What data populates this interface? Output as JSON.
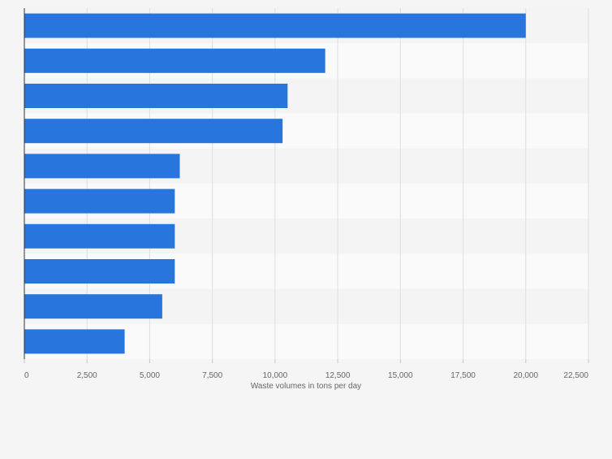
{
  "chart_data": {
    "type": "bar",
    "orientation": "horizontal",
    "categories": [
      "",
      "",
      "",
      "",
      "",
      "",
      "",
      "",
      "",
      ""
    ],
    "values": [
      20000,
      12000,
      10500,
      10300,
      6200,
      6000,
      6000,
      6000,
      5500,
      4000
    ],
    "title": "",
    "xlabel": "Waste volumes in tons per day",
    "ylabel": "",
    "xlim": [
      0,
      22500
    ],
    "ticks": [
      0,
      2500,
      5000,
      7500,
      10000,
      12500,
      15000,
      17500,
      20000,
      22500
    ],
    "tick_labels": [
      "0",
      "2,500",
      "5,000",
      "7,500",
      "10,000",
      "12,500",
      "15,000",
      "17,500",
      "20,000",
      "22,500"
    ],
    "grid": true,
    "colors": {
      "bar": "#2876dd",
      "band_a": "#f4f4f4",
      "band_b": "#fafafa",
      "grid": "#dedede",
      "axis": "#333333",
      "label": "#666666"
    }
  }
}
